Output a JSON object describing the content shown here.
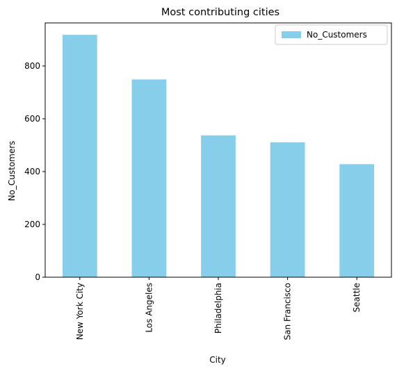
{
  "chart_data": {
    "type": "bar",
    "title": "Most contributing cities",
    "xlabel": "City",
    "ylabel": "No_Customers",
    "categories": [
      "New York City",
      "Los Angeles",
      "Philadelphia",
      "San Francisco",
      "Seattle"
    ],
    "series": [
      {
        "name": "No_Customers",
        "values": [
          918,
          749,
          537,
          511,
          428
        ],
        "color": "#87CEEB"
      }
    ],
    "ylim": [
      0,
      963
    ],
    "yticks": [
      0,
      200,
      400,
      600,
      800
    ],
    "grid": false,
    "legend": "top-right"
  }
}
